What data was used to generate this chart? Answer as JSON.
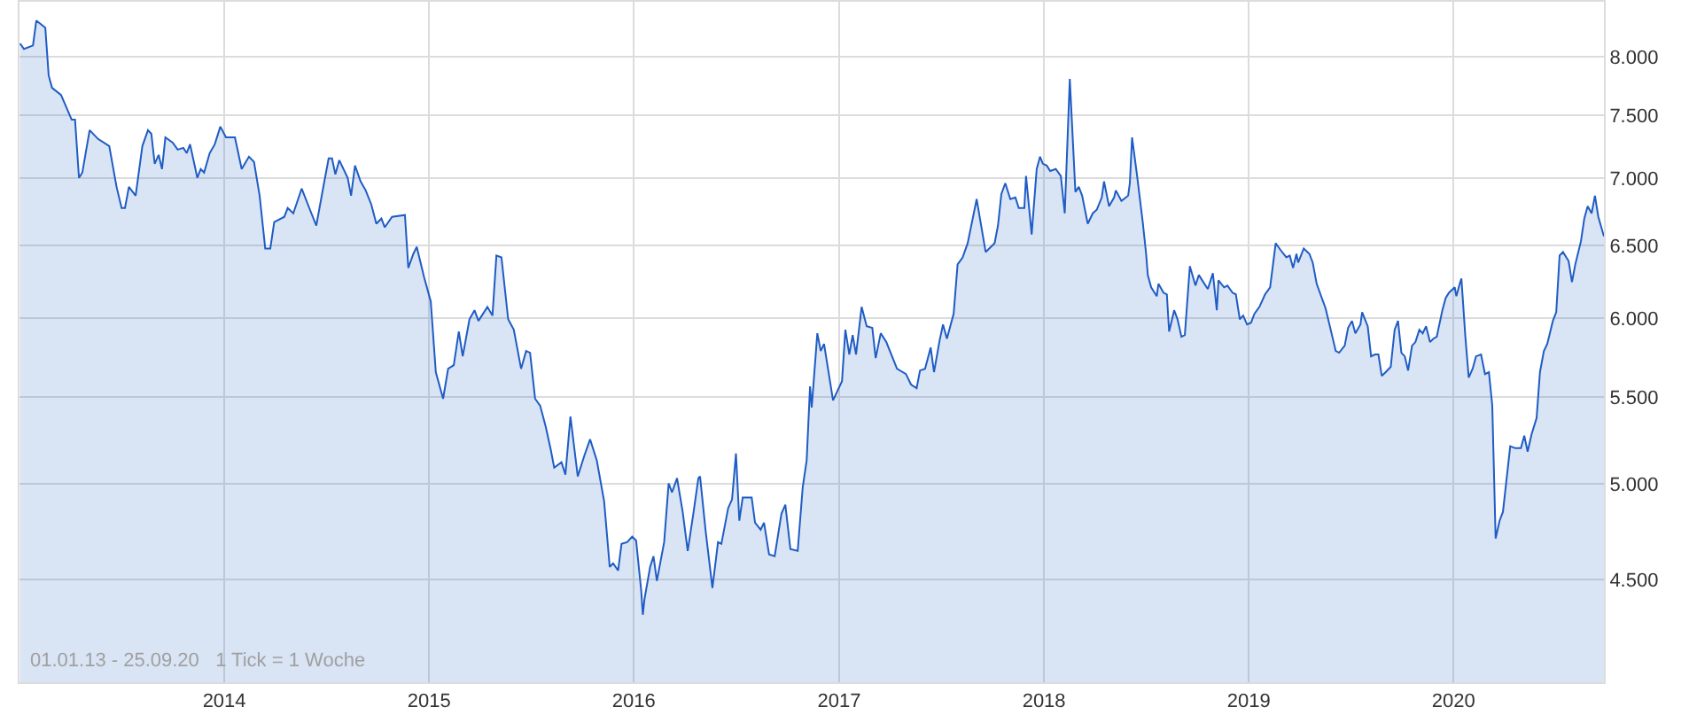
{
  "chart_data": {
    "type": "area",
    "log": "y",
    "grid": true,
    "xlim": [
      "2013-01-01",
      "2020-09-25"
    ],
    "ylim": [
      4020,
      8500
    ],
    "xticks": [
      {
        "value": "2014-01-01",
        "label": "2014"
      },
      {
        "value": "2015-01-01",
        "label": "2015"
      },
      {
        "value": "2016-01-01",
        "label": "2016"
      },
      {
        "value": "2017-01-01",
        "label": "2017"
      },
      {
        "value": "2018-01-01",
        "label": "2018"
      },
      {
        "value": "2019-01-01",
        "label": "2019"
      },
      {
        "value": "2020-01-01",
        "label": "2020"
      }
    ],
    "yticks": [
      {
        "value": 4500,
        "label": "4.500"
      },
      {
        "value": 5000,
        "label": "5.000"
      },
      {
        "value": 5500,
        "label": "5.500"
      },
      {
        "value": 6000,
        "label": "6.000"
      },
      {
        "value": 6500,
        "label": "6.500"
      },
      {
        "value": 7000,
        "label": "7.000"
      },
      {
        "value": 7500,
        "label": "7.500"
      },
      {
        "value": 8000,
        "label": "8.000"
      }
    ],
    "annotations": [
      "01.01.13 - 25.09.20   1 Tick = 1 Woche"
    ],
    "series": [
      {
        "color": "#1f5cc4",
        "x": [
          "2013-01-02",
          "2013-01-09",
          "2013-01-25",
          "2013-01-31",
          "2013-02-16",
          "2013-02-22",
          "2013-02-28",
          "2013-03-16",
          "2013-04-04",
          "2013-04-10",
          "2013-04-17",
          "2013-04-23",
          "2013-05-06",
          "2013-05-21",
          "2013-06-10",
          "2013-06-23",
          "2013-07-02",
          "2013-07-08",
          "2013-07-15",
          "2013-07-27",
          "2013-08-08",
          "2013-08-18",
          "2013-08-24",
          "2013-08-30",
          "2013-09-06",
          "2013-09-12",
          "2013-09-18",
          "2013-10-01",
          "2013-10-10",
          "2013-10-20",
          "2013-10-26",
          "2013-11-01",
          "2013-11-14",
          "2013-11-20",
          "2013-11-26",
          "2013-12-06",
          "2013-12-15",
          "2013-12-25",
          "2014-01-04",
          "2014-01-20",
          "2014-02-01",
          "2014-02-14",
          "2014-02-23",
          "2014-03-05",
          "2014-03-15",
          "2014-03-24",
          "2014-03-31",
          "2014-04-18",
          "2014-04-24",
          "2014-05-04",
          "2014-05-19",
          "2014-06-04",
          "2014-06-14",
          "2014-06-26",
          "2014-07-06",
          "2014-07-12",
          "2014-07-18",
          "2014-07-25",
          "2014-08-09",
          "2014-08-15",
          "2014-08-22",
          "2014-09-01",
          "2014-09-10",
          "2014-09-20",
          "2014-09-29",
          "2014-10-08",
          "2014-10-14",
          "2014-10-27",
          "2014-11-19",
          "2014-11-25",
          "2014-12-04",
          "2014-12-10",
          "2014-12-23",
          "2015-01-04",
          "2015-01-13",
          "2015-01-26",
          "2015-02-04",
          "2015-02-14",
          "2015-02-23",
          "2015-03-02",
          "2015-03-14",
          "2015-03-23",
          "2015-03-30",
          "2015-04-15",
          "2015-04-24",
          "2015-05-01",
          "2015-05-10",
          "2015-05-22",
          "2015-06-01",
          "2015-06-14",
          "2015-06-23",
          "2015-06-30",
          "2015-07-09",
          "2015-07-18",
          "2015-07-28",
          "2015-08-06",
          "2015-08-12",
          "2015-08-25",
          "2015-09-01",
          "2015-09-10",
          "2015-09-23",
          "2015-10-05",
          "2015-10-15",
          "2015-10-27",
          "2015-11-09",
          "2015-11-19",
          "2015-11-25",
          "2015-12-04",
          "2015-12-10",
          "2015-12-20",
          "2015-12-29",
          "2016-01-05",
          "2016-01-14",
          "2016-01-17",
          "2016-01-20",
          "2016-01-30",
          "2016-02-05",
          "2016-02-11",
          "2016-02-24",
          "2016-03-03",
          "2016-03-09",
          "2016-03-18",
          "2016-03-28",
          "2016-04-06",
          "2016-04-16",
          "2016-04-25",
          "2016-04-28",
          "2016-05-08",
          "2016-05-20",
          "2016-05-30",
          "2016-06-05",
          "2016-06-17",
          "2016-06-24",
          "2016-07-01",
          "2016-07-07",
          "2016-07-13",
          "2016-07-29",
          "2016-08-04",
          "2016-08-14",
          "2016-08-20",
          "2016-08-29",
          "2016-09-08",
          "2016-09-20",
          "2016-09-27",
          "2016-10-06",
          "2016-10-19",
          "2016-10-28",
          "2016-11-04",
          "2016-11-10",
          "2016-11-13",
          "2016-11-23",
          "2016-11-29",
          "2016-12-05",
          "2016-12-21",
          "2017-01-06",
          "2017-01-12",
          "2017-01-19",
          "2017-01-25",
          "2017-01-31",
          "2017-02-10",
          "2017-02-19",
          "2017-03-01",
          "2017-03-07",
          "2017-03-16",
          "2017-03-26",
          "2017-04-14",
          "2017-04-30",
          "2017-05-09",
          "2017-05-19",
          "2017-05-25",
          "2017-06-03",
          "2017-06-13",
          "2017-06-19",
          "2017-06-29",
          "2017-07-05",
          "2017-07-12",
          "2017-07-24",
          "2017-07-31",
          "2017-08-09",
          "2017-08-18",
          "2017-09-03",
          "2017-09-19",
          "2017-10-05",
          "2017-10-11",
          "2017-10-17",
          "2017-10-24",
          "2017-11-02",
          "2017-11-11",
          "2017-11-17",
          "2017-11-27",
          "2017-11-30",
          "2017-12-10",
          "2017-12-19",
          "2017-12-25",
          "2017-12-30",
          "2018-01-06",
          "2018-01-12",
          "2018-01-22",
          "2018-01-31",
          "2018-02-07",
          "2018-02-16",
          "2018-02-26",
          "2018-03-04",
          "2018-03-10",
          "2018-03-20",
          "2018-03-29",
          "2018-04-05",
          "2018-04-14",
          "2018-04-18",
          "2018-04-27",
          "2018-05-06",
          "2018-05-09",
          "2018-05-19",
          "2018-05-31",
          "2018-06-03",
          "2018-06-07",
          "2018-06-16",
          "2018-06-26",
          "2018-07-02",
          "2018-07-05",
          "2018-07-11",
          "2018-07-21",
          "2018-07-24",
          "2018-08-02",
          "2018-08-08",
          "2018-08-12",
          "2018-08-21",
          "2018-08-27",
          "2018-09-03",
          "2018-09-09",
          "2018-09-18",
          "2018-09-28",
          "2018-10-04",
          "2018-10-14",
          "2018-10-20",
          "2018-10-29",
          "2018-11-05",
          "2018-11-08",
          "2018-11-18",
          "2018-11-24",
          "2018-12-03",
          "2018-12-09",
          "2018-12-16",
          "2018-12-22",
          "2018-12-29",
          "2019-01-05",
          "2019-01-11",
          "2019-01-20",
          "2019-01-30",
          "2019-02-08",
          "2019-02-18",
          "2019-02-27",
          "2019-03-09",
          "2019-03-15",
          "2019-03-21",
          "2019-03-27",
          "2019-03-30",
          "2019-04-09",
          "2019-04-19",
          "2019-04-25",
          "2019-05-02",
          "2019-05-18",
          "2019-05-30",
          "2019-06-05",
          "2019-06-11",
          "2019-06-21",
          "2019-06-27",
          "2019-07-04",
          "2019-07-10",
          "2019-07-19",
          "2019-07-22",
          "2019-08-01",
          "2019-08-07",
          "2019-08-14",
          "2019-08-20",
          "2019-08-26",
          "2019-09-02",
          "2019-09-11",
          "2019-09-18",
          "2019-09-24",
          "2019-09-30",
          "2019-10-06",
          "2019-10-12",
          "2019-10-19",
          "2019-10-25",
          "2019-11-01",
          "2019-11-07",
          "2019-11-13",
          "2019-11-20",
          "2019-11-26",
          "2019-12-02",
          "2019-12-12",
          "2019-12-18",
          "2019-12-24",
          "2020-01-03",
          "2020-01-06",
          "2020-01-12",
          "2020-01-15",
          "2020-01-22",
          "2020-01-28",
          "2020-02-04",
          "2020-02-10",
          "2020-02-19",
          "2020-02-26",
          "2020-03-04",
          "2020-03-10",
          "2020-03-16",
          "2020-03-23",
          "2020-03-29",
          "2020-04-11",
          "2020-04-20",
          "2020-04-30",
          "2020-05-06",
          "2020-05-12",
          "2020-05-19",
          "2020-05-28",
          "2020-06-03",
          "2020-06-10",
          "2020-06-16",
          "2020-06-26",
          "2020-07-02",
          "2020-07-08",
          "2020-07-14",
          "2020-07-24",
          "2020-07-30",
          "2020-08-05",
          "2020-08-15",
          "2020-08-21",
          "2020-08-27",
          "2020-09-03",
          "2020-09-09",
          "2020-09-15",
          "2020-09-25"
        ],
        "values": [
          8118,
          8070,
          8101,
          8326,
          8261,
          7838,
          7732,
          7672,
          7466,
          7466,
          7003,
          7044,
          7380,
          7309,
          7252,
          6934,
          6774,
          6774,
          6934,
          6867,
          7252,
          7380,
          7351,
          7112,
          7182,
          7071,
          7322,
          7280,
          7224,
          7238,
          7196,
          7266,
          7003,
          7071,
          7044,
          7196,
          7266,
          7409,
          7322,
          7322,
          7071,
          7168,
          7126,
          6867,
          6479,
          6479,
          6670,
          6709,
          6774,
          6735,
          6921,
          6748,
          6645,
          6921,
          7154,
          7154,
          7030,
          7140,
          7003,
          6867,
          7098,
          6975,
          6907,
          6801,
          6658,
          6696,
          6632,
          6709,
          6722,
          6342,
          6441,
          6491,
          6280,
          6112,
          5655,
          5492,
          5676,
          5699,
          5913,
          5754,
          5994,
          6053,
          5983,
          6076,
          6018,
          6429,
          6416,
          5994,
          5925,
          5676,
          5788,
          5777,
          5492,
          5450,
          5324,
          5191,
          5091,
          5121,
          5052,
          5385,
          5042,
          5161,
          5252,
          5131,
          4906,
          4564,
          4582,
          4546,
          4681,
          4690,
          4718,
          4699,
          4450,
          4330,
          4406,
          4564,
          4618,
          4494,
          4690,
          5003,
          4954,
          5032,
          4849,
          4645,
          4839,
          5032,
          5042,
          4746,
          4459,
          4690,
          4681,
          4868,
          4916,
          5171,
          4802,
          4926,
          4926,
          4792,
          4755,
          4792,
          4627,
          4618,
          4839,
          4887,
          4654,
          4645,
          4983,
          5131,
          5567,
          5439,
          5902,
          5788,
          5833,
          5482,
          5599,
          5925,
          5766,
          5890,
          5766,
          6076,
          5948,
          5937,
          5743,
          5902,
          5845,
          5676,
          5643,
          5578,
          5556,
          5665,
          5676,
          5810,
          5655,
          5856,
          5959,
          5867,
          6030,
          6367,
          6416,
          6517,
          6841,
          6454,
          6517,
          6645,
          6880,
          6962,
          6841,
          6854,
          6774,
          6774,
          7017,
          6580,
          7071,
          7168,
          7112,
          7098,
          7056,
          7071,
          7017,
          6735,
          7808,
          6894,
          6934,
          6867,
          6658,
          6735,
          6761,
          6854,
          6975,
          6787,
          6854,
          6907,
          6827,
          6867,
          6962,
          7322,
          7017,
          6670,
          6441,
          6293,
          6208,
          6148,
          6232,
          6172,
          6160,
          5913,
          6053,
          5994,
          5879,
          5890,
          6354,
          6220,
          6293,
          6232,
          6196,
          6305,
          6053,
          6256,
          6208,
          6220,
          6172,
          6160,
          5994,
          6018,
          5959,
          5971,
          6030,
          6076,
          6160,
          6208,
          6517,
          6466,
          6416,
          6429,
          6342,
          6441,
          6379,
          6479,
          6441,
          6379,
          6232,
          6065,
          5879,
          5788,
          5777,
          5822,
          5937,
          5983,
          5902,
          5959,
          6041,
          5948,
          5754,
          5766,
          5766,
          5632,
          5655,
          5688,
          5925,
          5983,
          5777,
          5754,
          5665,
          5822,
          5845,
          5925,
          5902,
          5948,
          5845,
          5867,
          5879,
          6053,
          6136,
          6172,
          6208,
          6148,
          6232,
          6268,
          5879,
          5621,
          5676,
          5754,
          5766,
          5643,
          5655,
          5450,
          4709,
          4802,
          4849,
          5212,
          5201,
          5201,
          5273,
          5181,
          5281,
          5376,
          5655,
          5788,
          5833,
          5983,
          6041,
          6429,
          6454,
          6391,
          6244,
          6367,
          6530,
          6696,
          6787,
          6735,
          6867,
          6709,
          6566
        ]
      }
    ]
  }
}
